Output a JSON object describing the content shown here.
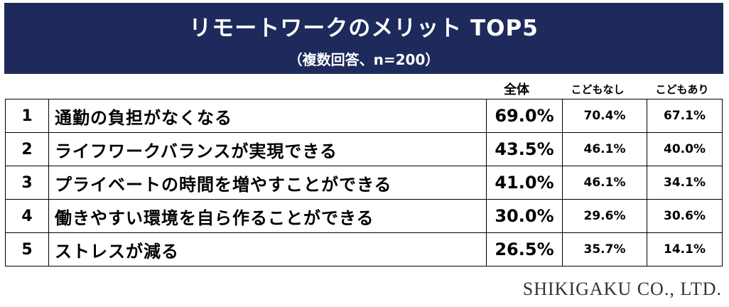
{
  "header": {
    "title": "リモートワークのメリット TOP5",
    "subtitle": "（複数回答、n=200）"
  },
  "columns": {
    "total": "全体",
    "no_children": "こどもなし",
    "with_children": "こどもあり"
  },
  "rows": [
    {
      "rank": "1",
      "label": "通勤の負担がなくなる",
      "total": "69.0%",
      "no_children": "70.4%",
      "with_children": "67.1%"
    },
    {
      "rank": "2",
      "label": "ライフワークバランスが実現できる",
      "total": "43.5%",
      "no_children": "46.1%",
      "with_children": "40.0%"
    },
    {
      "rank": "3",
      "label": "プライベートの時間を増やすことができる",
      "total": "41.0%",
      "no_children": "46.1%",
      "with_children": "34.1%"
    },
    {
      "rank": "4",
      "label": "働きやすい環境を自ら作ることができる",
      "total": "30.0%",
      "no_children": "29.6%",
      "with_children": "30.6%"
    },
    {
      "rank": "5",
      "label": "ストレスが減る",
      "total": "26.5%",
      "no_children": "35.7%",
      "with_children": "14.1%"
    }
  ],
  "footer": {
    "company": "SHIKIGAKU CO., LTD."
  },
  "colors": {
    "header_bg": "#1e2a5c",
    "header_text": "#ffffff"
  },
  "chart_data": {
    "type": "table",
    "title": "リモートワークのメリット TOP5",
    "subtitle": "（複数回答、n=200）",
    "columns": [
      "",
      "",
      "全体",
      "こどもなし",
      "こどもあり"
    ],
    "categories": [
      "通勤の負担がなくなる",
      "ライフワークバランスが実現できる",
      "プライベートの時間を増やすことができる",
      "働きやすい環境を自ら作ることができる",
      "ストレスが減る"
    ],
    "series": [
      {
        "name": "全体",
        "values": [
          69.0,
          43.5,
          41.0,
          30.0,
          26.5
        ]
      },
      {
        "name": "こどもなし",
        "values": [
          70.4,
          46.1,
          46.1,
          29.6,
          35.7
        ]
      },
      {
        "name": "こどもあり",
        "values": [
          67.1,
          40.0,
          34.1,
          30.6,
          14.1
        ]
      }
    ]
  }
}
